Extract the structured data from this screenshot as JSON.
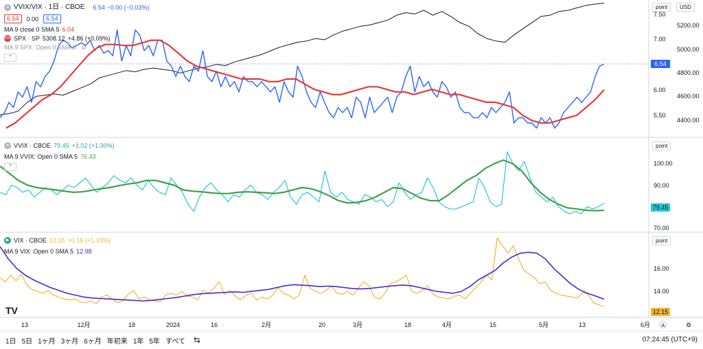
{
  "pane1": {
    "title": "VVIX/VIX · 1日 · CBOE",
    "ohlc": "6.54  −0.00 (−0.03%)",
    "bid": "6.54",
    "spread": "0.00",
    "ask": "6.54",
    "ma_label": "MA 9 close 0 SMA 5",
    "ma_value": "6.04",
    "spx_title": "SPX · SP",
    "spx_value": "5308.12",
    "spx_change": "+4.86 (+0.09%)",
    "spx_ma_label": "MA 9 SPX: Open 0 SMA 5",
    "axis_btn": "point",
    "currency": "USD",
    "price_tag": "6.54",
    "ticks_left": [
      "7.50",
      "7.00",
      "6.50",
      "6.00",
      "5.50"
    ],
    "ticks_right": [
      "5200.00",
      "5000.00",
      "4800.00",
      "4600.00",
      "4400.00"
    ]
  },
  "pane2": {
    "title": "VVIX · CBOE",
    "value": "79.45",
    "change": "+1.02 (+1.30%)",
    "ma_label": "MA 9 VVIX: Open 0 SMA 5",
    "ma_value": "76.43",
    "axis_btn": "point",
    "price_tag": "79.45",
    "ticks": [
      "100.00",
      "90.00",
      "80.00",
      "70.00"
    ]
  },
  "pane3": {
    "title": "VIX · CBOE",
    "value": "12.15",
    "change": "+0.16 (+1.33%)",
    "ma_label": "MA 9 VIX: Open 0 SMA 5",
    "ma_value": "12.98",
    "axis_btn": "point",
    "price_tag": "12.15",
    "ticks": [
      "16.00",
      "14.00"
    ]
  },
  "xaxis": [
    "13",
    "12月",
    "18",
    "2024",
    "16",
    "2月",
    "20",
    "3月",
    "18",
    "4月",
    "15",
    "5月",
    "13",
    "6月"
  ],
  "toolbar": [
    "1日",
    "5日",
    "1ヶ月",
    "3ヶ月",
    "6ヶ月",
    "年初来",
    "1年",
    "5年",
    "すべて"
  ],
  "clock": "07:24:45 (UTC+9)",
  "colors": {
    "ratio": "#2962ff",
    "ratio_ma": "#e53935",
    "spx": "#131722",
    "vvix": "#26c6da",
    "vvix_ma": "#43a047",
    "vix": "#f2b632",
    "vix_ma": "#3d2bd6"
  },
  "chart_data": [
    {
      "type": "line",
      "title": "VVIX/VIX · 1日 · CBOE",
      "ylim": [
        5.2,
        7.7
      ],
      "series": [
        {
          "name": "VVIX/VIX",
          "values": [
            5.5,
            5.6,
            5.8,
            5.7,
            6.0,
            5.9,
            6.1,
            5.8,
            6.2,
            6.1,
            6.3,
            6.4,
            6.6,
            6.9,
            7.0,
            6.95,
            6.85,
            6.9,
            6.95,
            6.9,
            7.0,
            6.8,
            6.9,
            6.75,
            6.8,
            6.7,
            7.2,
            6.6,
            6.9,
            6.7,
            7.2,
            7.1,
            6.8,
            6.9,
            6.7,
            7.0,
            7.0,
            6.6,
            6.5,
            6.3,
            6.5,
            6.3,
            6.2,
            6.5,
            6.4,
            6.8,
            6.3,
            6.2,
            6.4,
            6.1,
            6.3,
            6.1,
            6.2,
            6.0,
            6.3,
            6.2,
            6.2,
            6.1,
            6.2,
            6.1,
            6.0,
            6.1,
            5.8,
            6.2,
            6.0,
            5.9,
            6.5,
            6.3,
            6.0,
            5.8,
            5.7,
            6.0,
            5.8,
            5.6,
            5.5,
            5.7,
            5.6,
            5.7,
            5.5,
            5.9,
            5.8,
            5.5,
            5.9,
            5.6,
            5.7,
            5.8,
            5.9,
            5.6,
            5.9,
            6.0,
            6.3,
            6.5,
            6.0,
            6.3,
            6.1,
            6.2,
            6.0,
            5.9,
            6.2,
            6.1,
            5.9,
            6.0,
            5.7,
            5.6,
            5.6,
            5.5,
            5.5,
            5.6,
            5.5,
            5.7,
            5.6,
            5.7,
            5.8,
            6.0,
            5.4,
            5.5,
            5.5,
            5.4,
            5.4,
            5.3,
            5.5,
            5.4,
            5.5,
            5.3,
            5.4,
            5.6,
            5.7,
            5.8,
            5.9,
            5.8,
            5.9,
            6.0,
            6.3,
            6.5,
            6.54
          ]
        },
        {
          "name": "MA 9 close 0 SMA 5",
          "values": [
            5.3,
            5.4,
            5.55,
            5.7,
            5.85,
            5.95,
            6.1,
            6.3,
            6.5,
            6.7,
            6.85,
            6.92,
            6.92,
            6.9,
            6.9,
            6.95,
            7.0,
            7.0,
            6.9,
            6.75,
            6.6,
            6.5,
            6.45,
            6.4,
            6.35,
            6.3,
            6.25,
            6.25,
            6.25,
            6.2,
            6.2,
            6.25,
            6.25,
            6.15,
            6.05,
            6.0,
            5.95,
            5.95,
            6.0,
            6.05,
            6.1,
            6.1,
            6.05,
            6.0,
            6.0,
            5.95,
            6.0,
            6.05,
            6.0,
            5.95,
            5.95,
            5.9,
            5.85,
            5.8,
            5.8,
            5.75,
            5.7,
            5.55,
            5.45,
            5.4,
            5.4,
            5.45,
            5.5,
            5.55,
            5.7,
            5.85,
            6.04
          ]
        },
        {
          "name": "SPX · SP",
          "values": [
            4400,
            4410,
            4430,
            4500,
            4550,
            4560,
            4570,
            4560,
            4590,
            4620,
            4650,
            4700,
            4720,
            4740,
            4760,
            4750,
            4770,
            4780,
            4770,
            4760,
            4740,
            4760,
            4780,
            4790,
            4810,
            4800,
            4830,
            4850,
            4870,
            4890,
            4920,
            4950,
            4970,
            4990,
            5000,
            5020,
            5010,
            5050,
            5080,
            5100,
            5120,
            5130,
            5150,
            5170,
            5210,
            5230,
            5220,
            5250,
            5210,
            5240,
            5200,
            5150,
            5120,
            5060,
            5020,
            5000,
            4990,
            5050,
            5100,
            5150,
            5200,
            5210,
            5240,
            5250,
            5270,
            5290,
            5300,
            5308
          ]
        }
      ]
    },
    {
      "type": "line",
      "title": "VVIX · CBOE",
      "ylim": [
        69,
        105
      ],
      "series": [
        {
          "name": "VVIX",
          "values": [
            84,
            83,
            87,
            86,
            84,
            85,
            82,
            84,
            86,
            85,
            83,
            85,
            87,
            86,
            88,
            90,
            87,
            84,
            86,
            88,
            91,
            89,
            88,
            90,
            87,
            85,
            89,
            86,
            84,
            83,
            90,
            87,
            84,
            79,
            76,
            82,
            86,
            88,
            85,
            83,
            80,
            83,
            82,
            85,
            87,
            84,
            83,
            81,
            84,
            86,
            89,
            82,
            79,
            83,
            84,
            82,
            80,
            93,
            84,
            82,
            84,
            81,
            80,
            79,
            83,
            82,
            80,
            81,
            78,
            80,
            88,
            84,
            81,
            83,
            84,
            90,
            86,
            80,
            78,
            77,
            77,
            78,
            79,
            80,
            90,
            86,
            80,
            78,
            79,
            101,
            96,
            93,
            97,
            90,
            84,
            82,
            80,
            82,
            78,
            76,
            75,
            76,
            75,
            78,
            77,
            78,
            79.45
          ]
        },
        {
          "name": "MA 9 VVIX: Open 0 SMA 5",
          "values": [
            95,
            92,
            89,
            87,
            86,
            85.5,
            85,
            84.5,
            84,
            84.2,
            84.8,
            85.5,
            86,
            86.8,
            87.5,
            88,
            89,
            89,
            88,
            87,
            85,
            84.5,
            84.2,
            83.8,
            83.5,
            83.5,
            84,
            84.2,
            84,
            83.8,
            83.5,
            84,
            85,
            86,
            85.5,
            84.2,
            82.5,
            80.5,
            79.5,
            79.8,
            80.5,
            82,
            84,
            86,
            85.5,
            83.5,
            81.5,
            80.5,
            80.5,
            83,
            86,
            89,
            91,
            94,
            96,
            97.5,
            96,
            93,
            88,
            84,
            81,
            79,
            77.5,
            77,
            76.5,
            76.3,
            76.43
          ]
        }
      ]
    },
    {
      "type": "line",
      "title": "VIX · CBOE",
      "ylim": [
        11.5,
        19.5
      ],
      "series": [
        {
          "name": "VIX",
          "values": [
            15.2,
            14.8,
            15.5,
            14.9,
            15.6,
            14.5,
            14.0,
            13.8,
            13.6,
            13.9,
            13.4,
            13.2,
            13.0,
            12.9,
            13.0,
            12.7,
            12.6,
            12.8,
            12.5,
            13.2,
            13.4,
            13.0,
            12.6,
            12.8,
            13.5,
            13.9,
            13.0,
            13.2,
            12.9,
            12.8,
            12.7,
            13.4,
            13.6,
            13.4,
            13.8,
            13.3,
            13.2,
            12.9,
            13.9,
            13.6,
            14.1,
            14.8,
            13.5,
            13.9,
            13.3,
            12.9,
            13.4,
            13.6,
            12.9,
            13.2,
            13.0,
            13.4,
            14.2,
            13.6,
            13.4,
            13.0,
            13.4,
            15.5,
            14.1,
            13.8,
            13.6,
            13.9,
            14.4,
            13.6,
            13.5,
            13.8,
            13.4,
            14.1,
            14.8,
            14.4,
            13.2,
            13.0,
            13.6,
            14.6,
            14.8,
            15.1,
            15.5,
            13.8,
            13.6,
            13.9,
            14.4,
            13.5,
            13.2,
            13.1,
            13.0,
            13.3,
            13.4,
            13.0,
            13.6,
            14.2,
            14.8,
            15.5,
            15.0,
            19.4,
            18.6,
            17.8,
            18.6,
            17.2,
            16.0,
            15.6,
            15.2,
            14.6,
            14.8,
            13.9,
            13.6,
            13.4,
            13.3,
            13.2,
            13.1,
            13.7,
            13.5,
            12.6,
            12.4,
            12.15
          ]
        },
        {
          "name": "MA 9 VIX: Open 0 SMA 5",
          "values": [
            18.5,
            17.2,
            16.2,
            15.5,
            15.0,
            14.6,
            14.2,
            13.9,
            13.6,
            13.4,
            13.2,
            13.1,
            13.05,
            13.0,
            12.95,
            12.9,
            12.85,
            12.8,
            12.85,
            12.95,
            13.05,
            13.15,
            13.3,
            13.45,
            13.55,
            13.6,
            13.65,
            13.7,
            13.75,
            13.7,
            13.8,
            13.9,
            14.0,
            14.2,
            14.4,
            14.5,
            14.45,
            14.4,
            14.3,
            14.35,
            14.3,
            14.2,
            14.1,
            14.05,
            14.1,
            14.2,
            14.3,
            14.4,
            14.45,
            14.4,
            14.2,
            14.0,
            13.8,
            13.7,
            13.6,
            13.8,
            14.3,
            15.0,
            15.5,
            16.0,
            16.8,
            17.4,
            17.8,
            17.9,
            17.8,
            17.2,
            16.2,
            15.4,
            14.6,
            14.0,
            13.6,
            13.3,
            12.98
          ]
        }
      ]
    }
  ]
}
